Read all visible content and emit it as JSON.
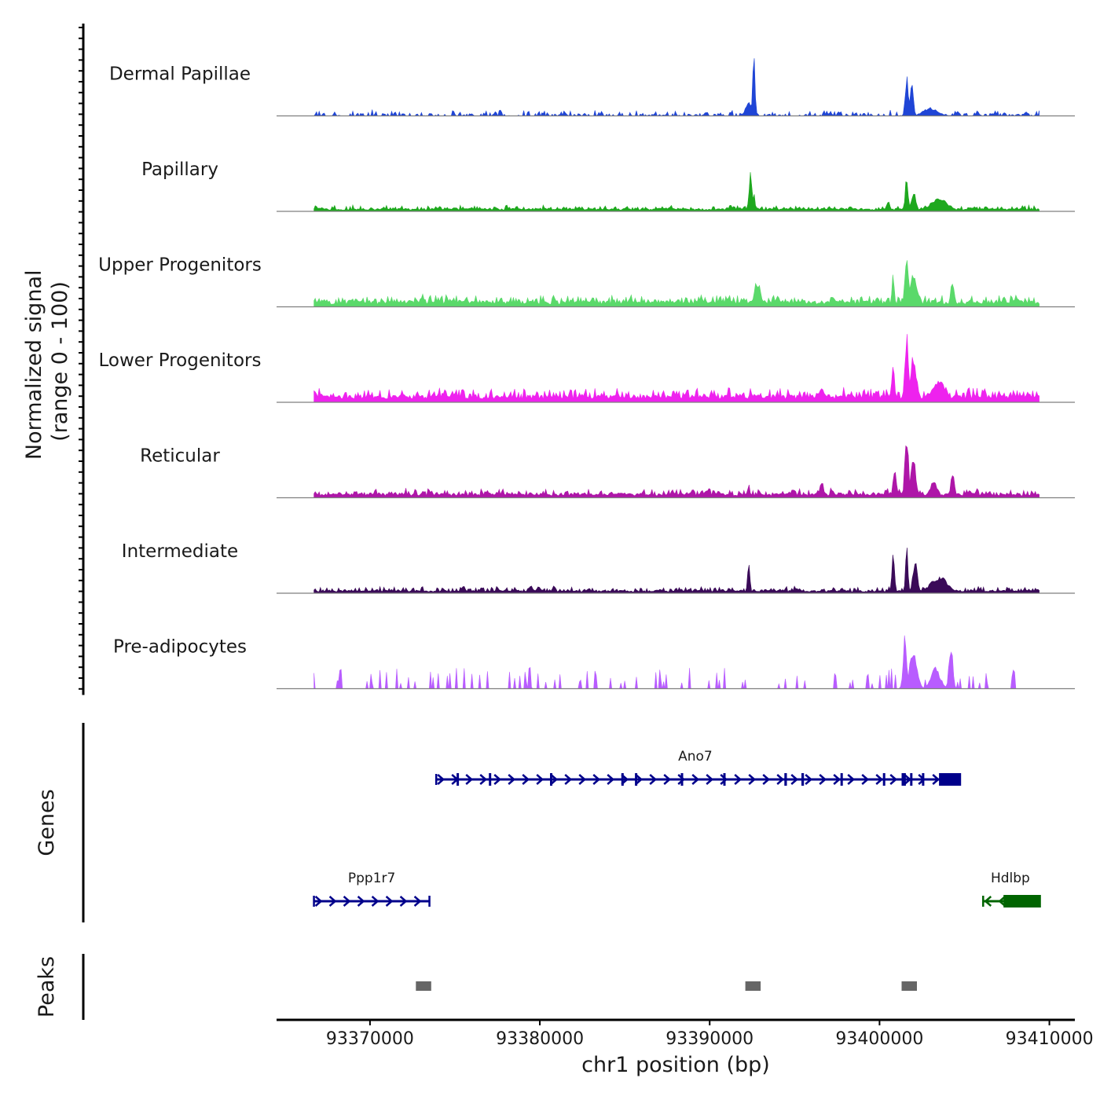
{
  "chart_data": {
    "type": "area",
    "title": "",
    "ylabel_line1": "Normalized signal",
    "ylabel_line2": "(range 0 - 100)",
    "xlabel": "chr1 position (bp)",
    "xlim": [
      93364500,
      93411500
    ],
    "signal_xlim": [
      93366700,
      93409400
    ],
    "x_ticks": [
      93370000,
      93380000,
      93390000,
      93400000,
      93410000
    ],
    "x_tick_labels": [
      "93370000",
      "93380000",
      "93390000",
      "93400000",
      "93410000"
    ],
    "tracks": [
      {
        "name": "Dermal Papillae",
        "color": "#1f45d6",
        "baseline": 3,
        "noise": 6,
        "style": "sparse",
        "peaks": [
          [
            93392300,
            22,
            250
          ],
          [
            93392600,
            95,
            100
          ],
          [
            93401600,
            60,
            120
          ],
          [
            93401900,
            55,
            120
          ],
          [
            93403000,
            12,
            600
          ]
        ]
      },
      {
        "name": "Papillary",
        "color": "#1ea81e",
        "baseline": 4,
        "noise": 5,
        "style": "dense",
        "peaks": [
          [
            93392400,
            55,
            120
          ],
          [
            93392600,
            30,
            100
          ],
          [
            93401600,
            55,
            120
          ],
          [
            93402000,
            30,
            200
          ],
          [
            93403500,
            20,
            700
          ],
          [
            93400500,
            15,
            150
          ]
        ]
      },
      {
        "name": "Upper Progenitors",
        "color": "#5ad96a",
        "baseline": 8,
        "noise": 10,
        "style": "dense",
        "peaks": [
          [
            93392800,
            40,
            250
          ],
          [
            93400800,
            55,
            100
          ],
          [
            93401600,
            75,
            150
          ],
          [
            93402000,
            50,
            300
          ],
          [
            93404300,
            40,
            150
          ],
          [
            93394000,
            15,
            200
          ]
        ]
      },
      {
        "name": "Lower Progenitors",
        "color": "#ee22ee",
        "baseline": 10,
        "noise": 12,
        "style": "dense",
        "peaks": [
          [
            93400800,
            55,
            120
          ],
          [
            93401600,
            100,
            150
          ],
          [
            93402000,
            70,
            250
          ],
          [
            93403500,
            30,
            600
          ],
          [
            93396600,
            25,
            200
          ]
        ]
      },
      {
        "name": "Reticular",
        "color": "#ae16a8",
        "baseline": 6,
        "noise": 8,
        "style": "dense",
        "peaks": [
          [
            93392300,
            20,
            100
          ],
          [
            93396600,
            28,
            150
          ],
          [
            93400900,
            40,
            150
          ],
          [
            93401600,
            95,
            150
          ],
          [
            93402000,
            60,
            200
          ],
          [
            93404300,
            38,
            150
          ],
          [
            93403200,
            25,
            300
          ]
        ]
      },
      {
        "name": "Intermediate",
        "color": "#3a0a58",
        "baseline": 4,
        "noise": 6,
        "style": "dense",
        "peaks": [
          [
            93392300,
            45,
            100
          ],
          [
            93400800,
            55,
            120
          ],
          [
            93401600,
            70,
            100
          ],
          [
            93402100,
            45,
            200
          ],
          [
            93403500,
            25,
            700
          ],
          [
            93375500,
            12,
            150
          ],
          [
            93379500,
            12,
            150
          ]
        ]
      },
      {
        "name": "Pre-adipocytes",
        "color": "#b85cff",
        "baseline": 0,
        "noise": 22,
        "style": "spiky",
        "peaks": [
          [
            93379400,
            55,
            60
          ],
          [
            93401500,
            80,
            150
          ],
          [
            93402000,
            60,
            300
          ],
          [
            93404200,
            70,
            150
          ],
          [
            93403300,
            30,
            400
          ]
        ]
      }
    ],
    "genes_label": "Genes",
    "genes": [
      {
        "name": "Ano7",
        "start": 93373900,
        "end": 93404400,
        "strand": "+",
        "color": "#00008b",
        "row": 0,
        "exons": [
          [
            93375100,
            60
          ],
          [
            93377000,
            60
          ],
          [
            93380600,
            60
          ],
          [
            93384800,
            60
          ],
          [
            93385600,
            60
          ],
          [
            93388300,
            60
          ],
          [
            93390800,
            60
          ],
          [
            93394400,
            150
          ],
          [
            93395400,
            150
          ],
          [
            93397700,
            60
          ],
          [
            93400200,
            60
          ],
          [
            93401300,
            250
          ],
          [
            93401800,
            60
          ],
          [
            93402500,
            60
          ],
          [
            93403500,
            1300
          ]
        ]
      },
      {
        "name": "Ppp1r7",
        "start": 93366700,
        "end": 93373500,
        "strand": "+",
        "color": "#00008b",
        "row": 1,
        "exons": []
      },
      {
        "name": "Hdlbp",
        "start": 93406100,
        "end": 93409300,
        "strand": "-",
        "color": "#006400",
        "row": 1,
        "exons": [
          [
            93407300,
            2200
          ],
          [
            93408600,
            100
          ],
          [
            93409000,
            100
          ]
        ]
      }
    ],
    "peaks_label": "Peaks",
    "peaks": [
      [
        93372700,
        93373600
      ],
      [
        93392100,
        93393000
      ],
      [
        93401300,
        93402200
      ]
    ],
    "peak_color": "#666666"
  }
}
